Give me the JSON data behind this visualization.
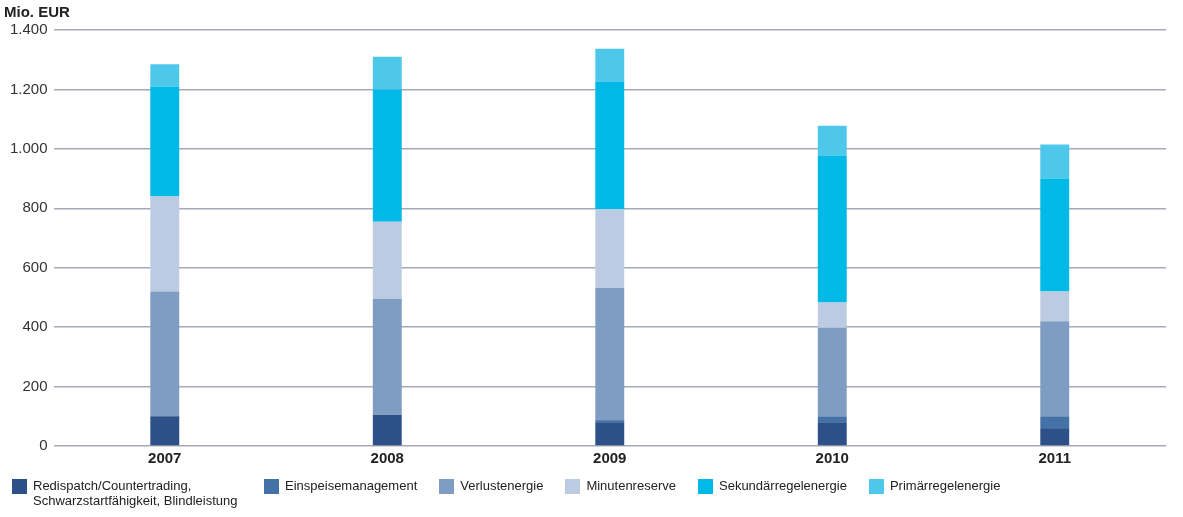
{
  "chart_data": {
    "type": "bar",
    "title": "Mio. EUR",
    "stacked": true,
    "categories": [
      "2007",
      "2008",
      "2009",
      "2010",
      "2011"
    ],
    "series": [
      {
        "name": "Redispatch/Countertrading, Schwarzstartfähigkeit, Blindleistung",
        "color": "#2d5089",
        "values": [
          100,
          105,
          80,
          80,
          60
        ]
      },
      {
        "name": "Einspeisemanagement",
        "color": "#4472a6",
        "values": [
          0,
          0,
          7,
          18,
          40
        ]
      },
      {
        "name": "Verlustenergie",
        "color": "#7f9cc3",
        "values": [
          420,
          390,
          445,
          300,
          320
        ]
      },
      {
        "name": "Minutenreserve",
        "color": "#bccbe2",
        "values": [
          320,
          260,
          265,
          85,
          100
        ]
      },
      {
        "name": "Sekundärregelenergie",
        "color": "#00b9e6",
        "values": [
          370,
          445,
          430,
          495,
          380
        ]
      },
      {
        "name": "Primärregelenergie",
        "color": "#4dc8ea",
        "values": [
          75,
          110,
          110,
          100,
          115
        ]
      }
    ],
    "ylim": [
      0,
      1400
    ],
    "yticks": [
      0,
      {
        "value": 200,
        "label": "200"
      },
      {
        "value": 400,
        "label": "400"
      },
      {
        "value": 600,
        "label": "600"
      },
      {
        "value": 800,
        "label": "800"
      },
      {
        "value": 1000,
        "label": "1.000"
      },
      {
        "value": 1200,
        "label": "1.200"
      },
      {
        "value": 1400,
        "label": "1.400"
      }
    ],
    "grid": "y",
    "legend": "bottom"
  }
}
